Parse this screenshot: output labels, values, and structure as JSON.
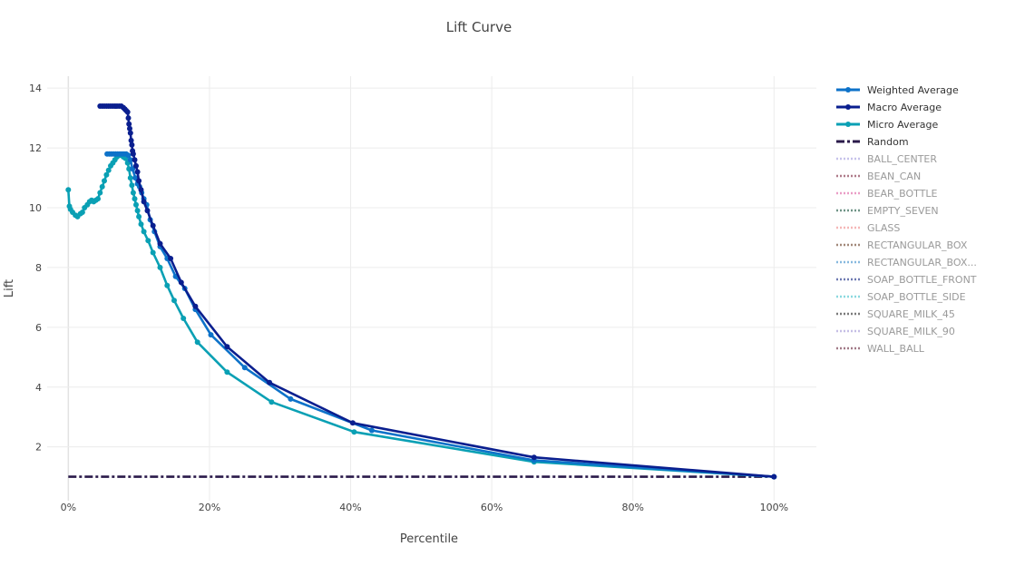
{
  "chart_data": {
    "type": "line",
    "title": "Lift Curve",
    "xlabel": "Percentile",
    "ylabel": "Lift",
    "xlim": [
      -0.03,
      1.06
    ],
    "ylim": [
      0.2,
      14.4
    ],
    "x_ticks": [
      0,
      0.2,
      0.4,
      0.6,
      0.8,
      1.0
    ],
    "x_tick_labels": [
      "0%",
      "20%",
      "40%",
      "60%",
      "80%",
      "100%"
    ],
    "y_ticks": [
      2,
      4,
      6,
      8,
      10,
      12,
      14
    ],
    "y_tick_labels": [
      "2",
      "4",
      "6",
      "8",
      "10",
      "12",
      "14"
    ],
    "grid": true,
    "legend_position": "right",
    "series": [
      {
        "name": "Weighted Average",
        "color": "#0d72c9",
        "dash": "solid",
        "markers": true,
        "dim": false,
        "x": [
          0.055,
          0.058,
          0.061,
          0.064,
          0.067,
          0.07,
          0.073,
          0.076,
          0.079,
          0.082,
          0.085,
          0.088,
          0.091,
          0.095,
          0.098,
          0.101,
          0.104,
          0.107,
          0.111,
          0.116,
          0.122,
          0.13,
          0.14,
          0.152,
          0.165,
          0.18,
          0.202,
          0.25,
          0.315,
          0.43,
          0.66,
          1.0
        ],
        "y": [
          11.8,
          11.8,
          11.8,
          11.8,
          11.8,
          11.8,
          11.8,
          11.8,
          11.8,
          11.8,
          11.75,
          11.6,
          11.3,
          11.0,
          10.8,
          10.7,
          10.5,
          10.3,
          10.1,
          9.6,
          9.2,
          8.7,
          8.3,
          7.7,
          7.3,
          6.6,
          5.75,
          4.65,
          3.6,
          2.55,
          1.55,
          1.0
        ]
      },
      {
        "name": "Macro Average",
        "color": "#0a1f8f",
        "dash": "solid",
        "markers": true,
        "dim": false,
        "x": [
          0.045,
          0.048,
          0.051,
          0.054,
          0.057,
          0.06,
          0.063,
          0.066,
          0.069,
          0.072,
          0.075,
          0.078,
          0.08,
          0.082,
          0.084,
          0.085,
          0.086,
          0.087,
          0.088,
          0.089,
          0.09,
          0.091,
          0.092,
          0.094,
          0.096,
          0.098,
          0.1,
          0.103,
          0.107,
          0.112,
          0.12,
          0.13,
          0.145,
          0.16,
          0.18,
          0.225,
          0.285,
          0.403,
          0.66,
          1.0
        ],
        "y": [
          13.4,
          13.4,
          13.4,
          13.4,
          13.4,
          13.4,
          13.4,
          13.4,
          13.4,
          13.4,
          13.4,
          13.35,
          13.3,
          13.25,
          13.2,
          13.0,
          12.8,
          12.65,
          12.5,
          12.25,
          12.1,
          11.9,
          11.8,
          11.6,
          11.4,
          11.2,
          10.9,
          10.6,
          10.2,
          9.9,
          9.4,
          8.8,
          8.3,
          7.5,
          6.7,
          5.35,
          4.15,
          2.8,
          1.65,
          1.0
        ]
      },
      {
        "name": "Micro Average",
        "color": "#0aa0b4",
        "dash": "solid",
        "markers": true,
        "dim": false,
        "x": [
          0.0,
          0.0015,
          0.003,
          0.006,
          0.01,
          0.013,
          0.017,
          0.02,
          0.023,
          0.027,
          0.03,
          0.033,
          0.036,
          0.039,
          0.042,
          0.045,
          0.048,
          0.051,
          0.054,
          0.057,
          0.06,
          0.063,
          0.066,
          0.069,
          0.072,
          0.075,
          0.078,
          0.081,
          0.084,
          0.086,
          0.088,
          0.09,
          0.092,
          0.094,
          0.096,
          0.098,
          0.1,
          0.103,
          0.107,
          0.113,
          0.12,
          0.13,
          0.14,
          0.15,
          0.163,
          0.183,
          0.225,
          0.288,
          0.405,
          0.66,
          1.0
        ],
        "y": [
          10.6,
          10.05,
          9.95,
          9.85,
          9.75,
          9.7,
          9.8,
          9.85,
          10.0,
          10.1,
          10.2,
          10.25,
          10.2,
          10.25,
          10.3,
          10.5,
          10.7,
          10.9,
          11.1,
          11.25,
          11.4,
          11.5,
          11.6,
          11.7,
          11.75,
          11.75,
          11.7,
          11.65,
          11.5,
          11.3,
          11.0,
          10.75,
          10.5,
          10.3,
          10.1,
          9.9,
          9.7,
          9.45,
          9.2,
          8.9,
          8.5,
          8.0,
          7.4,
          6.9,
          6.3,
          5.5,
          4.5,
          3.5,
          2.5,
          1.5,
          1.0
        ]
      },
      {
        "name": "Random",
        "color": "#2a1a4a",
        "dash": "dashdot",
        "markers": false,
        "dim": false,
        "x": [
          0.0,
          1.0
        ],
        "y": [
          1.0,
          1.0
        ]
      },
      {
        "name": "BALL_CENTER",
        "color": "#b9b3e6",
        "dash": "dot",
        "markers": false,
        "dim": true,
        "x": [],
        "y": []
      },
      {
        "name": "BEAN_CAN",
        "color": "#9c5b6e",
        "dash": "dot",
        "markers": false,
        "dim": true,
        "x": [],
        "y": []
      },
      {
        "name": "BEAR_BOTTLE",
        "color": "#e685b8",
        "dash": "dot",
        "markers": false,
        "dim": true,
        "x": [],
        "y": []
      },
      {
        "name": "EMPTY_SEVEN",
        "color": "#4c7a6a",
        "dash": "dot",
        "markers": false,
        "dim": true,
        "x": [],
        "y": []
      },
      {
        "name": "GLASS",
        "color": "#f3a6a6",
        "dash": "dot",
        "markers": false,
        "dim": true,
        "x": [],
        "y": []
      },
      {
        "name": "RECTANGULAR_BOX",
        "color": "#8c6c5a",
        "dash": "dot",
        "markers": false,
        "dim": true,
        "x": [],
        "y": []
      },
      {
        "name": "RECTANGULAR_BOX...",
        "color": "#6aa8d8",
        "dash": "dot",
        "markers": false,
        "dim": true,
        "x": [],
        "y": []
      },
      {
        "name": "SOAP_BOTTLE_FRONT",
        "color": "#4a5aa0",
        "dash": "dot",
        "markers": false,
        "dim": true,
        "x": [],
        "y": []
      },
      {
        "name": "SOAP_BOTTLE_SIDE",
        "color": "#6fd0d8",
        "dash": "dot",
        "markers": false,
        "dim": true,
        "x": [],
        "y": []
      },
      {
        "name": "SQUARE_MILK_45",
        "color": "#5a5a5a",
        "dash": "dot",
        "markers": false,
        "dim": true,
        "x": [],
        "y": []
      },
      {
        "name": "SQUARE_MILK_90",
        "color": "#b8b0e0",
        "dash": "dot",
        "markers": false,
        "dim": true,
        "x": [],
        "y": []
      },
      {
        "name": "WALL_BALL",
        "color": "#8a5a6a",
        "dash": "dot",
        "markers": false,
        "dim": true,
        "x": [],
        "y": []
      }
    ]
  }
}
